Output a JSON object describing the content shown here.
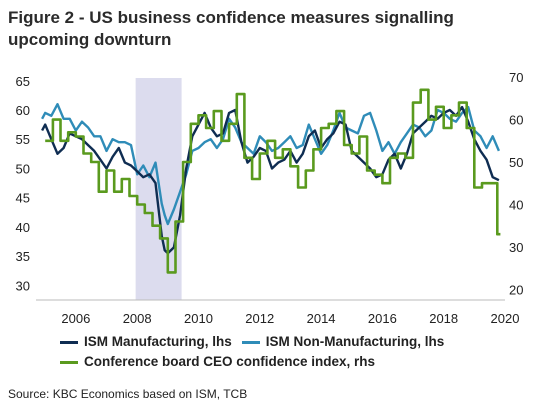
{
  "title": "Figure 2 - US business confidence measures signalling upcoming downturn",
  "source": "Source: KBC Economics based on ISM, TCB",
  "chart_data": {
    "type": "line",
    "x_range": [
      2004.7,
      2020.0
    ],
    "x_ticks": [
      "2006",
      "2008",
      "2010",
      "2012",
      "2014",
      "2016",
      "2018",
      "2020"
    ],
    "ylim_left": [
      27.5,
      66.5
    ],
    "ylim_right": [
      17.5,
      71.2
    ],
    "yticks_left": [
      "65",
      "60",
      "55",
      "50",
      "45",
      "40",
      "35",
      "30"
    ],
    "yticks_right": [
      "70",
      "60",
      "50",
      "40",
      "30",
      "20"
    ],
    "shaded_period": [
      2007.95,
      2009.45
    ],
    "colors": {
      "ism_mfg": "#0f2d52",
      "ism_nonmfg": "#2f8cb8",
      "ceo": "#5a9a1e",
      "shade": "#dcdcee"
    },
    "series": [
      {
        "name": "ISM Manufacturing, lhs",
        "axis": "left",
        "x": [
          2004.9,
          2005.0,
          2005.2,
          2005.4,
          2005.6,
          2005.8,
          2006.0,
          2006.2,
          2006.4,
          2006.6,
          2006.8,
          2007.0,
          2007.2,
          2007.4,
          2007.6,
          2007.8,
          2008.0,
          2008.2,
          2008.4,
          2008.6,
          2008.8,
          2008.9,
          2009.0,
          2009.2,
          2009.4,
          2009.6,
          2009.8,
          2010.0,
          2010.2,
          2010.4,
          2010.6,
          2010.8,
          2011.0,
          2011.2,
          2011.4,
          2011.6,
          2011.8,
          2012.0,
          2012.2,
          2012.4,
          2012.6,
          2012.8,
          2013.0,
          2013.2,
          2013.4,
          2013.6,
          2013.8,
          2014.0,
          2014.2,
          2014.4,
          2014.6,
          2014.8,
          2015.0,
          2015.2,
          2015.4,
          2015.6,
          2015.8,
          2016.0,
          2016.2,
          2016.4,
          2016.6,
          2016.8,
          2017.0,
          2017.2,
          2017.4,
          2017.6,
          2017.8,
          2018.0,
          2018.2,
          2018.4,
          2018.6,
          2018.8,
          2019.0,
          2019.2,
          2019.4,
          2019.6,
          2019.8
        ],
        "values": [
          56.5,
          57.5,
          55.0,
          52.5,
          53.5,
          56.0,
          55.5,
          55.0,
          54.0,
          53.0,
          51.5,
          50.0,
          52.0,
          53.5,
          51.0,
          50.5,
          49.5,
          48.5,
          49.0,
          47.5,
          38.5,
          36.0,
          35.5,
          36.5,
          42.0,
          50.0,
          55.5,
          57.5,
          59.5,
          57.0,
          55.5,
          56.0,
          59.5,
          60.0,
          54.5,
          51.0,
          52.0,
          53.5,
          53.0,
          50.0,
          51.0,
          51.5,
          53.0,
          51.0,
          52.5,
          55.5,
          56.5,
          53.5,
          55.0,
          56.0,
          58.0,
          57.5,
          53.0,
          52.0,
          51.0,
          50.0,
          48.5,
          49.0,
          51.5,
          52.5,
          50.0,
          52.5,
          56.0,
          57.0,
          58.0,
          59.0,
          58.5,
          59.5,
          60.0,
          59.0,
          60.5,
          58.0,
          55.0,
          53.0,
          51.5,
          48.5,
          48.0
        ]
      },
      {
        "name": "ISM Non-Manufacturing, lhs",
        "axis": "left",
        "x": [
          2004.9,
          2005.0,
          2005.2,
          2005.4,
          2005.6,
          2005.8,
          2006.0,
          2006.2,
          2006.4,
          2006.6,
          2006.8,
          2007.0,
          2007.2,
          2007.4,
          2007.6,
          2007.8,
          2008.0,
          2008.2,
          2008.4,
          2008.6,
          2008.8,
          2008.9,
          2009.0,
          2009.2,
          2009.4,
          2009.6,
          2009.8,
          2010.0,
          2010.2,
          2010.4,
          2010.6,
          2010.8,
          2011.0,
          2011.2,
          2011.4,
          2011.6,
          2011.8,
          2012.0,
          2012.2,
          2012.4,
          2012.6,
          2012.8,
          2013.0,
          2013.2,
          2013.4,
          2013.6,
          2013.8,
          2014.0,
          2014.2,
          2014.4,
          2014.6,
          2014.8,
          2015.0,
          2015.2,
          2015.4,
          2015.6,
          2015.8,
          2016.0,
          2016.2,
          2016.4,
          2016.6,
          2016.8,
          2017.0,
          2017.2,
          2017.4,
          2017.6,
          2017.8,
          2018.0,
          2018.2,
          2018.4,
          2018.6,
          2018.8,
          2019.0,
          2019.2,
          2019.4,
          2019.6,
          2019.8
        ],
        "values": [
          58.5,
          59.5,
          59.0,
          61.0,
          58.5,
          58.5,
          56.5,
          58.0,
          57.0,
          55.5,
          55.5,
          53.0,
          55.0,
          54.5,
          54.5,
          54.0,
          49.0,
          50.5,
          48.5,
          51.0,
          44.0,
          42.0,
          40.5,
          43.0,
          46.0,
          49.0,
          53.0,
          53.5,
          54.5,
          55.0,
          53.5,
          55.0,
          58.5,
          57.0,
          54.5,
          53.5,
          52.5,
          55.5,
          54.5,
          53.0,
          53.5,
          54.5,
          55.5,
          53.5,
          54.0,
          57.5,
          55.0,
          52.5,
          54.0,
          56.5,
          59.5,
          57.0,
          56.5,
          56.0,
          59.0,
          59.5,
          56.5,
          53.0,
          54.5,
          52.5,
          54.5,
          56.0,
          57.5,
          57.0,
          55.5,
          56.5,
          60.0,
          59.5,
          58.5,
          58.0,
          59.5,
          60.5,
          56.5,
          55.5,
          53.5,
          55.5,
          53.0
        ]
      },
      {
        "name": "Conference board CEO confidence index, rhs",
        "axis": "right",
        "x": [
          2005.0,
          2005.25,
          2005.5,
          2005.75,
          2006.0,
          2006.25,
          2006.5,
          2006.75,
          2007.0,
          2007.25,
          2007.5,
          2007.75,
          2008.0,
          2008.25,
          2008.5,
          2008.75,
          2009.0,
          2009.25,
          2009.5,
          2009.75,
          2010.0,
          2010.25,
          2010.5,
          2010.75,
          2011.0,
          2011.25,
          2011.5,
          2011.75,
          2012.0,
          2012.25,
          2012.5,
          2012.75,
          2013.0,
          2013.25,
          2013.5,
          2013.75,
          2014.0,
          2014.25,
          2014.5,
          2014.75,
          2015.0,
          2015.25,
          2015.5,
          2015.75,
          2016.0,
          2016.25,
          2016.5,
          2016.75,
          2017.0,
          2017.25,
          2017.5,
          2017.75,
          2018.0,
          2018.25,
          2018.5,
          2018.75,
          2019.0,
          2019.25,
          2019.5,
          2019.75
        ],
        "values": [
          55,
          60,
          55,
          57,
          56,
          52,
          50,
          43,
          48,
          43,
          46,
          42,
          40,
          38,
          35,
          32,
          24,
          36,
          50,
          59,
          61,
          58,
          62,
          55,
          59,
          66,
          51,
          46,
          52,
          55,
          51,
          53,
          49,
          44,
          48,
          53,
          58,
          59,
          62,
          54,
          52,
          56,
          48,
          47,
          45,
          51,
          52,
          51,
          64,
          67,
          60,
          63,
          58,
          61,
          64,
          58,
          44,
          45,
          45,
          33
        ]
      }
    ],
    "legend": [
      {
        "label": "ISM Manufacturing, lhs",
        "color": "#0f2d52"
      },
      {
        "label": "ISM Non-Manufacturing, lhs",
        "color": "#2f8cb8"
      },
      {
        "label": "Conference board CEO confidence index, rhs",
        "color": "#5a9a1e"
      }
    ]
  }
}
